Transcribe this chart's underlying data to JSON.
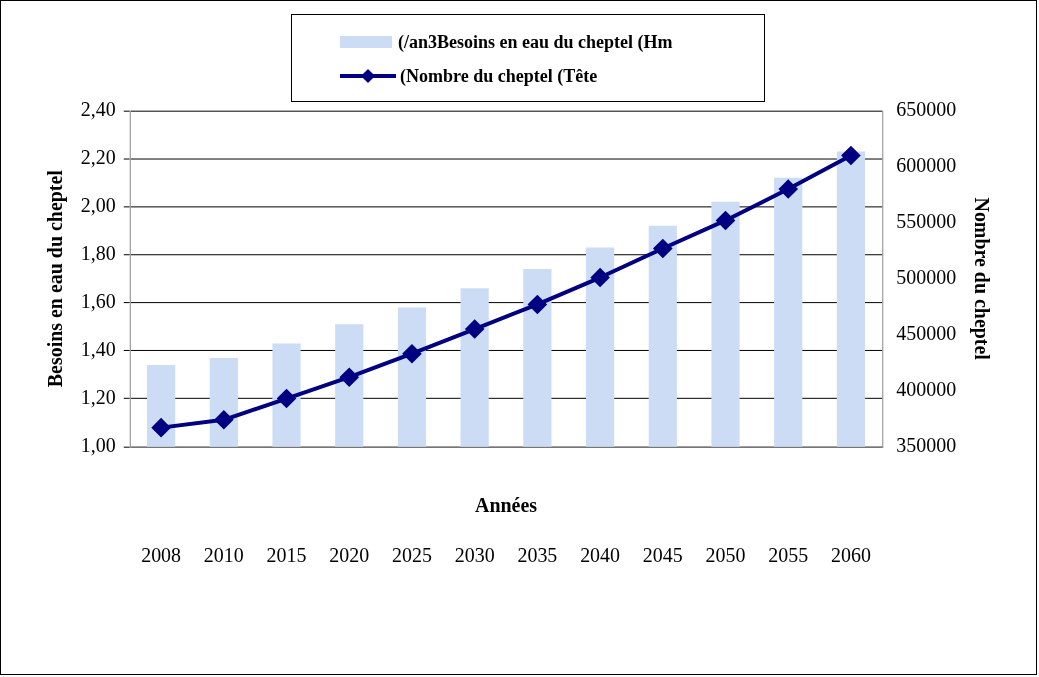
{
  "chart_data": {
    "type": "bar",
    "xlabel": "Années",
    "ylabel": "Besoins en eau du cheptel",
    "y2label": "Nombre du cheptel",
    "categories": [
      "2008",
      "2010",
      "2015",
      "2020",
      "2025",
      "2030",
      "2035",
      "2040",
      "2045",
      "2050",
      "2055",
      "2060"
    ],
    "series": [
      {
        "name": "(/an3Besoins en eau du cheptel (Hm",
        "color": "#cddcf5",
        "values": [
          1.34,
          1.37,
          1.43,
          1.51,
          1.58,
          1.66,
          1.74,
          1.83,
          1.92,
          2.02,
          2.12,
          2.23
        ]
      },
      {
        "name": "(Nombre du cheptel (Tête",
        "type": "line",
        "axis": "y2",
        "color": "#000080",
        "marker": "diamond",
        "values": [
          367000,
          374000,
          393000,
          412000,
          433000,
          455000,
          477000,
          501000,
          527000,
          552000,
          580000,
          610000
        ]
      }
    ],
    "ylim": [
      1,
      2.4
    ],
    "yticks": [
      {
        "value": 1,
        "label": "1,00"
      },
      {
        "value": 1.2,
        "label": "1,20"
      },
      {
        "value": 1.4,
        "label": "1,40"
      },
      {
        "value": 1.6,
        "label": "1,60"
      },
      {
        "value": 1.8,
        "label": "1,80"
      },
      {
        "value": 2,
        "label": "2,00"
      },
      {
        "value": 2.2,
        "label": "2,20"
      },
      {
        "value": 2.4,
        "label": "2,40"
      }
    ],
    "y2lim": [
      350000,
      650000
    ],
    "y2ticks": [
      350000,
      400000,
      450000,
      500000,
      550000,
      600000,
      650000
    ],
    "grid": "y",
    "legend": "top"
  }
}
